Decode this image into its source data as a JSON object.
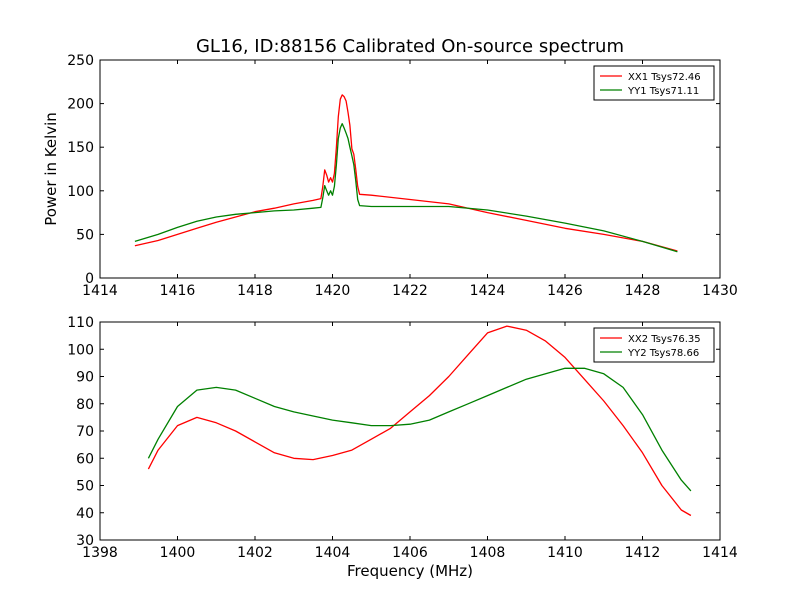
{
  "chart_data": [
    {
      "type": "line",
      "title": "GL16, ID:88156 Calibrated On-source spectrum",
      "xlabel": "",
      "ylabel": "Power in Kelvin",
      "xlim": [
        1414,
        1430
      ],
      "ylim": [
        0,
        250
      ],
      "xticks": [
        1414,
        1416,
        1418,
        1420,
        1422,
        1424,
        1426,
        1428,
        1430
      ],
      "yticks": [
        0,
        50,
        100,
        150,
        200,
        250
      ],
      "grid": false,
      "legend": "top-right",
      "series": [
        {
          "name": "XX1 Tsys72.46",
          "color": "#ff0000",
          "points": [
            [
              1414.9,
              37
            ],
            [
              1415.5,
              43
            ],
            [
              1416,
              50
            ],
            [
              1416.5,
              57
            ],
            [
              1417,
              64
            ],
            [
              1417.5,
              70
            ],
            [
              1418,
              76
            ],
            [
              1418.5,
              80
            ],
            [
              1419,
              85
            ],
            [
              1419.5,
              89
            ],
            [
              1419.7,
              91
            ],
            [
              1419.75,
              105
            ],
            [
              1419.8,
              124
            ],
            [
              1419.85,
              118
            ],
            [
              1419.9,
              110
            ],
            [
              1419.95,
              115
            ],
            [
              1420.0,
              110
            ],
            [
              1420.05,
              120
            ],
            [
              1420.1,
              150
            ],
            [
              1420.15,
              185
            ],
            [
              1420.2,
              205
            ],
            [
              1420.25,
              210
            ],
            [
              1420.3,
              208
            ],
            [
              1420.35,
              203
            ],
            [
              1420.4,
              190
            ],
            [
              1420.45,
              175
            ],
            [
              1420.5,
              148
            ],
            [
              1420.55,
              142
            ],
            [
              1420.6,
              125
            ],
            [
              1420.65,
              105
            ],
            [
              1420.7,
              96
            ],
            [
              1421,
              95
            ],
            [
              1422,
              90
            ],
            [
              1423,
              85
            ],
            [
              1424,
              75
            ],
            [
              1425,
              66
            ],
            [
              1426,
              57
            ],
            [
              1427,
              50
            ],
            [
              1428,
              42
            ],
            [
              1428.9,
              31
            ]
          ]
        },
        {
          "name": "YY1 Tsys71.11",
          "color": "#008000",
          "points": [
            [
              1414.9,
              42
            ],
            [
              1415.5,
              50
            ],
            [
              1416,
              58
            ],
            [
              1416.5,
              65
            ],
            [
              1417,
              70
            ],
            [
              1417.5,
              73
            ],
            [
              1418,
              75
            ],
            [
              1418.5,
              77
            ],
            [
              1419,
              78
            ],
            [
              1419.5,
              80
            ],
            [
              1419.7,
              81
            ],
            [
              1419.75,
              92
            ],
            [
              1419.8,
              106
            ],
            [
              1419.85,
              100
            ],
            [
              1419.9,
              95
            ],
            [
              1419.95,
              100
            ],
            [
              1420.0,
              95
            ],
            [
              1420.05,
              105
            ],
            [
              1420.1,
              130
            ],
            [
              1420.15,
              160
            ],
            [
              1420.2,
              172
            ],
            [
              1420.25,
              177
            ],
            [
              1420.3,
              172
            ],
            [
              1420.35,
              166
            ],
            [
              1420.4,
              160
            ],
            [
              1420.45,
              150
            ],
            [
              1420.5,
              140
            ],
            [
              1420.55,
              130
            ],
            [
              1420.6,
              112
            ],
            [
              1420.65,
              90
            ],
            [
              1420.7,
              83
            ],
            [
              1421,
              82
            ],
            [
              1422,
              82
            ],
            [
              1423,
              82
            ],
            [
              1424,
              78
            ],
            [
              1425,
              71
            ],
            [
              1426,
              63
            ],
            [
              1427,
              54
            ],
            [
              1428,
              42
            ],
            [
              1428.9,
              30
            ]
          ]
        }
      ]
    },
    {
      "type": "line",
      "title": "",
      "xlabel": "Frequency (MHz)",
      "ylabel": "",
      "xlim": [
        1398,
        1414
      ],
      "ylim": [
        30,
        110
      ],
      "xticks": [
        1398,
        1400,
        1402,
        1404,
        1406,
        1408,
        1410,
        1412,
        1414
      ],
      "yticks": [
        30,
        40,
        50,
        60,
        70,
        80,
        90,
        100,
        110
      ],
      "grid": false,
      "legend": "top-right",
      "series": [
        {
          "name": "XX2 Tsys76.35",
          "color": "#ff0000",
          "points": [
            [
              1399.25,
              56
            ],
            [
              1399.5,
              63
            ],
            [
              1400,
              72
            ],
            [
              1400.5,
              75
            ],
            [
              1401,
              73
            ],
            [
              1401.5,
              70
            ],
            [
              1402,
              66
            ],
            [
              1402.5,
              62
            ],
            [
              1403,
              60
            ],
            [
              1403.5,
              59.5
            ],
            [
              1404,
              61
            ],
            [
              1404.5,
              63
            ],
            [
              1405,
              67
            ],
            [
              1405.5,
              71
            ],
            [
              1406,
              77
            ],
            [
              1406.5,
              83
            ],
            [
              1407,
              90
            ],
            [
              1407.5,
              98
            ],
            [
              1408,
              106
            ],
            [
              1408.5,
              108.5
            ],
            [
              1409,
              107
            ],
            [
              1409.5,
              103
            ],
            [
              1410,
              97
            ],
            [
              1410.5,
              89
            ],
            [
              1411,
              81
            ],
            [
              1411.5,
              72
            ],
            [
              1412,
              62
            ],
            [
              1412.5,
              50
            ],
            [
              1413,
              41
            ],
            [
              1413.25,
              39
            ]
          ]
        },
        {
          "name": "YY2 Tsys78.66",
          "color": "#008000",
          "points": [
            [
              1399.25,
              60
            ],
            [
              1399.5,
              67
            ],
            [
              1400,
              79
            ],
            [
              1400.5,
              85
            ],
            [
              1401,
              86
            ],
            [
              1401.5,
              85
            ],
            [
              1402,
              82
            ],
            [
              1402.5,
              79
            ],
            [
              1403,
              77
            ],
            [
              1403.5,
              75.5
            ],
            [
              1404,
              74
            ],
            [
              1404.5,
              73
            ],
            [
              1405,
              72
            ],
            [
              1405.5,
              72
            ],
            [
              1406,
              72.5
            ],
            [
              1406.5,
              74
            ],
            [
              1407,
              77
            ],
            [
              1407.5,
              80
            ],
            [
              1408,
              83
            ],
            [
              1408.5,
              86
            ],
            [
              1409,
              89
            ],
            [
              1409.5,
              91
            ],
            [
              1410,
              93
            ],
            [
              1410.5,
              93
            ],
            [
              1411,
              91
            ],
            [
              1411.5,
              86
            ],
            [
              1412,
              76
            ],
            [
              1412.5,
              63
            ],
            [
              1413,
              52
            ],
            [
              1413.25,
              48
            ]
          ]
        }
      ]
    }
  ]
}
